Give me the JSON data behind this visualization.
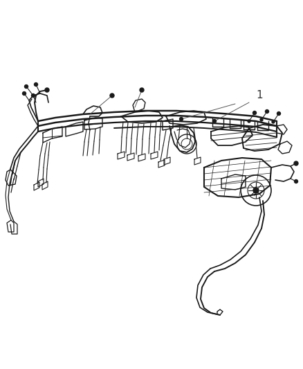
{
  "background_color": "#ffffff",
  "diagram_color": "#1a1a1a",
  "label_1": "1",
  "leader_line_color": "#555555",
  "fig_width": 4.38,
  "fig_height": 5.33,
  "dpi": 100
}
